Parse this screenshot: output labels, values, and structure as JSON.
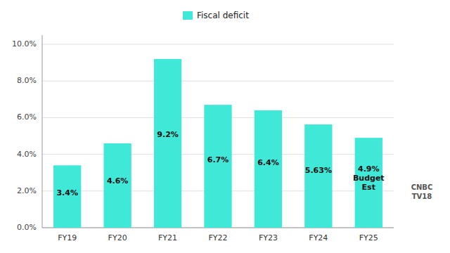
{
  "chart_data": {
    "type": "bar",
    "categories": [
      "FY19",
      "FY20",
      "FY21",
      "FY22",
      "FY23",
      "FY24",
      "FY25"
    ],
    "series": [
      {
        "name": "Fiscal deficit",
        "color": "#40E8D8",
        "values": [
          3.4,
          4.6,
          9.2,
          6.7,
          6.4,
          5.63,
          4.9
        ],
        "value_labels": [
          "3.4%",
          "4.6%",
          "9.2%",
          "6.7%",
          "6.4%",
          "5.63%",
          "4.9%\nBudget\nEst"
        ]
      }
    ],
    "ylim": [
      0,
      10.5
    ],
    "yticks": [
      {
        "value": 0.0,
        "label": "0.0%"
      },
      {
        "value": 2.0,
        "label": "2.0%"
      },
      {
        "value": 4.0,
        "label": "4.0%"
      },
      {
        "value": 6.0,
        "label": "6.0%"
      },
      {
        "value": 8.0,
        "label": "8.0%"
      },
      {
        "value": 10.0,
        "label": "10.0%"
      }
    ],
    "grid": true,
    "legend": "top",
    "data_labels": true,
    "annotations": [
      "CNBC\nTV18"
    ]
  }
}
